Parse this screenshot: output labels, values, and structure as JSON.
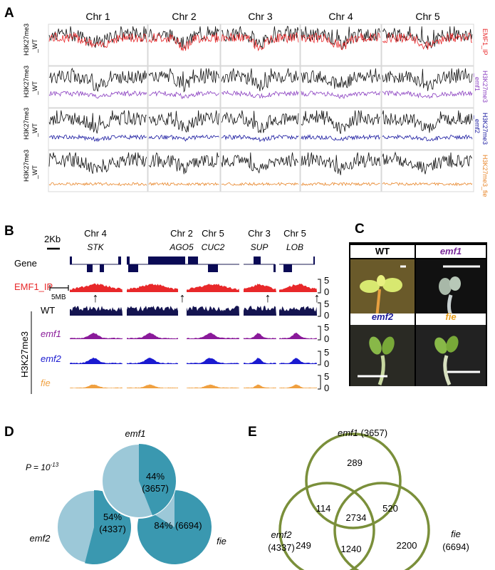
{
  "panels": {
    "A": {
      "label": "A",
      "chromosomes": [
        "Chr 1",
        "Chr 2",
        "Chr 3",
        "Chr 4",
        "Chr 5"
      ],
      "left_label_top": "H3K27me3",
      "left_label_bottom": "_WT",
      "rows": [
        {
          "right_label": "EMF1_IP",
          "color": "#e8282a"
        },
        {
          "right_label": "H3K27me3_emf1",
          "right_top": "H3K27me3",
          "right_bottom": "_emf1",
          "color": "#8a3fc0"
        },
        {
          "right_label": "H3K27me3_emf2",
          "right_top": "H3K27me3",
          "right_bottom": "_emf2",
          "color": "#1a1aa0"
        },
        {
          "right_label": "H3K27me3_fie",
          "color": "#e8862a"
        }
      ],
      "scale_label": "5MB",
      "arrow_glyph": "↑"
    },
    "B": {
      "label": "B",
      "scale_label": "2Kb",
      "loci": [
        {
          "chr": "Chr 4",
          "gene": "STK"
        },
        {
          "chr": "Chr 2",
          "gene": "AGO5"
        },
        {
          "chr": "Chr 5",
          "gene": "CUC2"
        },
        {
          "chr": "Chr 3",
          "gene": "SUP"
        },
        {
          "chr": "Chr 5",
          "gene": "LOB"
        }
      ],
      "gene_row_label": "Gene",
      "group_label": "H3K27me3",
      "tracks": [
        {
          "label": "EMF1_IP",
          "color": "#e8282a",
          "scale_top": "5",
          "scale_bottom": "0"
        },
        {
          "label": "WT",
          "color": "#141450",
          "scale_top": "5",
          "scale_bottom": "0"
        },
        {
          "label": "emf1",
          "color": "#8a1a9a",
          "scale_top": "5",
          "scale_bottom": "0"
        },
        {
          "label": "emf2",
          "color": "#1a1ad0",
          "scale_top": "5",
          "scale_bottom": "0"
        },
        {
          "label": "fie",
          "color": "#f0a040",
          "scale_top": "5",
          "scale_bottom": "0"
        }
      ]
    },
    "C": {
      "label": "C",
      "photos": [
        {
          "label": "WT",
          "color": "#000000"
        },
        {
          "label": "emf1",
          "color": "#7a2a9a"
        },
        {
          "label": "emf2",
          "color": "#1a1a9a"
        },
        {
          "label": "fie",
          "color": "#e8a020"
        }
      ]
    },
    "D": {
      "label": "D",
      "p_value_prefix": "P = 10",
      "p_value_exponent": "-13",
      "pies": [
        {
          "name": "emf1",
          "percent_text": "44%",
          "count_text": "(3657)",
          "fraction": 0.44
        },
        {
          "name": "emf2",
          "percent_text": "54%",
          "count_text": "(4337)",
          "fraction": 0.54
        },
        {
          "name": "fie",
          "percent_text": "84%",
          "count_text": "(6694)",
          "fraction": 0.84
        }
      ],
      "color_dark": "#3a98b0",
      "color_light": "#9cc8d8"
    },
    "E": {
      "label": "E",
      "sets": [
        {
          "name": "emf1",
          "count_text": "(3657)"
        },
        {
          "name": "emf2",
          "count_text": "(4337)"
        },
        {
          "name": "fie",
          "count_text": "(6694)"
        }
      ],
      "regions": {
        "emf1_only": "289",
        "emf2_only": "249",
        "fie_only": "2200",
        "emf1_emf2": "114",
        "emf1_fie": "520",
        "emf2_fie": "1240",
        "all": "2734"
      },
      "circle_color": "#7a8f3a"
    }
  }
}
